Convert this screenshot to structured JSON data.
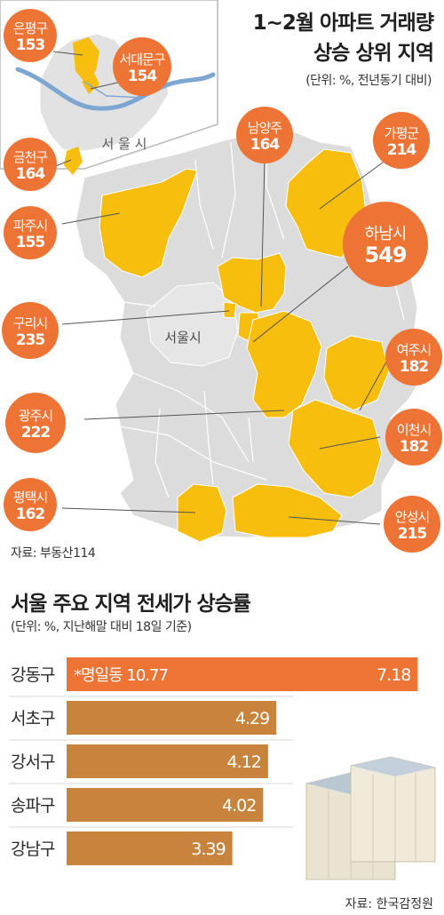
{
  "colors": {
    "highlight_region": "#F7BE0D",
    "base_region": "#DCDCDC",
    "bubble": "#EE7435",
    "bar_main": "#EE7435",
    "bar_other": "#C8843D",
    "river": "#7EA6D2"
  },
  "map_section": {
    "title_line1": "1~2월 아파트 거래량",
    "title_line2": "상승 상위 지역",
    "unit": "(단위: %, 전년동기 대비)",
    "seoul_inset_label": "서 울 시",
    "seoul_map_label": "서울시",
    "source": "자료: 부동산114"
  },
  "bar_section": {
    "title": "서울 주요 지역 전세가 상승률",
    "unit": "(단위: %, 지난해말 대비 18일 기준)",
    "source": "자료: 한국감정원"
  },
  "chart_data": [
    {
      "type": "map",
      "title": "1~2월 아파트 거래량 상승 상위 지역",
      "unit": "단위: %, 전년동기 대비",
      "regions": [
        {
          "name": "은평구",
          "value": "153"
        },
        {
          "name": "서대문구",
          "value": "154"
        },
        {
          "name": "금천구",
          "value": "164"
        },
        {
          "name": "파주시",
          "value": "155"
        },
        {
          "name": "남양주",
          "value": "164"
        },
        {
          "name": "가평군",
          "value": "214"
        },
        {
          "name": "하남시",
          "value": "549"
        },
        {
          "name": "구리시",
          "value": "235"
        },
        {
          "name": "여주시",
          "value": "182"
        },
        {
          "name": "광주시",
          "value": "222"
        },
        {
          "name": "이천시",
          "value": "182"
        },
        {
          "name": "평택시",
          "value": "162"
        },
        {
          "name": "안성시",
          "value": "215"
        }
      ]
    },
    {
      "type": "bar",
      "title": "서울 주요 지역 전세가 상승률",
      "unit": "단위: %, 지난해말 대비 18일 기준",
      "xlim": [
        0,
        7.5
      ],
      "categories": [
        "강동구",
        "서초구",
        "강서구",
        "송파구",
        "강남구"
      ],
      "values": [
        7.18,
        4.29,
        4.12,
        4.02,
        3.39
      ],
      "value_labels": [
        "7.18",
        "4.29",
        "4.12",
        "4.02",
        "3.39"
      ],
      "annotation": {
        "category": "강동구",
        "text": "*명일동 10.77"
      }
    }
  ]
}
